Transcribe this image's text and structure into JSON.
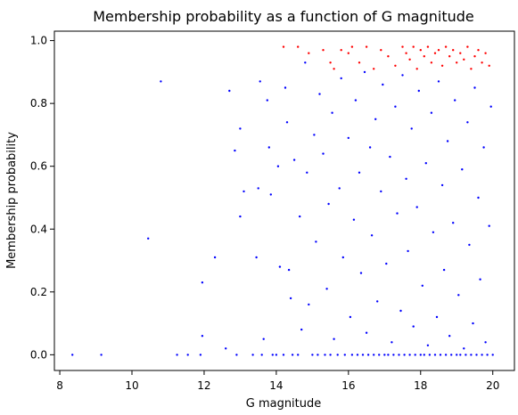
{
  "chart_data": {
    "type": "scatter",
    "title": "Membership probability as a function of G magnitude",
    "xlabel": "G magnitude",
    "ylabel": "Membership probability",
    "xlim": [
      7.85,
      20.6
    ],
    "ylim": [
      -0.05,
      1.03
    ],
    "xticks": [
      8,
      10,
      12,
      14,
      16,
      18,
      20
    ],
    "yticks": [
      0.0,
      0.2,
      0.4,
      0.6,
      0.8,
      1.0
    ],
    "grid": false,
    "legend": "none",
    "marker_size": 1.2,
    "series": [
      {
        "color": "#0000ff",
        "sampled": true,
        "points": [
          [
            8.35,
            0.0
          ],
          [
            9.15,
            0.0
          ],
          [
            10.45,
            0.37
          ],
          [
            10.8,
            0.87
          ],
          [
            11.25,
            0.0
          ],
          [
            11.55,
            0.0
          ],
          [
            11.9,
            0.0
          ],
          [
            11.95,
            0.06
          ],
          [
            11.95,
            0.23
          ],
          [
            12.3,
            0.31
          ],
          [
            12.6,
            0.02
          ],
          [
            12.7,
            0.84
          ],
          [
            12.85,
            0.65
          ],
          [
            12.9,
            0.0
          ],
          [
            13.0,
            0.72
          ],
          [
            13.0,
            0.44
          ],
          [
            13.1,
            0.52
          ],
          [
            13.35,
            0.0
          ],
          [
            13.45,
            0.31
          ],
          [
            13.5,
            0.53
          ],
          [
            13.55,
            0.87
          ],
          [
            13.6,
            0.0
          ],
          [
            13.65,
            0.05
          ],
          [
            13.75,
            0.81
          ],
          [
            13.8,
            0.66
          ],
          [
            13.85,
            0.51
          ],
          [
            13.9,
            0.0
          ],
          [
            14.0,
            0.0
          ],
          [
            14.05,
            0.6
          ],
          [
            14.1,
            0.28
          ],
          [
            14.2,
            0.0
          ],
          [
            14.25,
            0.85
          ],
          [
            14.3,
            0.74
          ],
          [
            14.35,
            0.27
          ],
          [
            14.4,
            0.18
          ],
          [
            14.45,
            0.0
          ],
          [
            14.5,
            0.62
          ],
          [
            14.6,
            0.0
          ],
          [
            14.65,
            0.44
          ],
          [
            14.7,
            0.08
          ],
          [
            14.8,
            0.93
          ],
          [
            14.85,
            0.58
          ],
          [
            14.9,
            0.16
          ],
          [
            15.0,
            0.0
          ],
          [
            15.05,
            0.7
          ],
          [
            15.1,
            0.36
          ],
          [
            15.15,
            0.0
          ],
          [
            15.2,
            0.83
          ],
          [
            15.3,
            0.64
          ],
          [
            15.35,
            0.0
          ],
          [
            15.4,
            0.21
          ],
          [
            15.45,
            0.48
          ],
          [
            15.5,
            0.0
          ],
          [
            15.55,
            0.77
          ],
          [
            15.6,
            0.05
          ],
          [
            15.7,
            0.0
          ],
          [
            15.75,
            0.53
          ],
          [
            15.8,
            0.88
          ],
          [
            15.85,
            0.31
          ],
          [
            15.9,
            0.0
          ],
          [
            16.0,
            0.69
          ],
          [
            16.05,
            0.12
          ],
          [
            16.1,
            0.0
          ],
          [
            16.15,
            0.43
          ],
          [
            16.2,
            0.81
          ],
          [
            16.25,
            0.0
          ],
          [
            16.3,
            0.58
          ],
          [
            16.35,
            0.26
          ],
          [
            16.4,
            0.0
          ],
          [
            16.45,
            0.9
          ],
          [
            16.5,
            0.07
          ],
          [
            16.55,
            0.0
          ],
          [
            16.6,
            0.66
          ],
          [
            16.65,
            0.38
          ],
          [
            16.7,
            0.0
          ],
          [
            16.75,
            0.75
          ],
          [
            16.8,
            0.17
          ],
          [
            16.85,
            0.0
          ],
          [
            16.9,
            0.52
          ],
          [
            16.95,
            0.86
          ],
          [
            17.0,
            0.0
          ],
          [
            17.05,
            0.29
          ],
          [
            17.1,
            0.0
          ],
          [
            17.15,
            0.63
          ],
          [
            17.2,
            0.04
          ],
          [
            17.25,
            0.0
          ],
          [
            17.3,
            0.79
          ],
          [
            17.35,
            0.45
          ],
          [
            17.4,
            0.0
          ],
          [
            17.45,
            0.14
          ],
          [
            17.5,
            0.89
          ],
          [
            17.55,
            0.0
          ],
          [
            17.6,
            0.56
          ],
          [
            17.65,
            0.33
          ],
          [
            17.7,
            0.0
          ],
          [
            17.75,
            0.72
          ],
          [
            17.8,
            0.09
          ],
          [
            17.85,
            0.0
          ],
          [
            17.9,
            0.47
          ],
          [
            17.95,
            0.84
          ],
          [
            18.0,
            0.0
          ],
          [
            18.05,
            0.22
          ],
          [
            18.1,
            0.0
          ],
          [
            18.15,
            0.61
          ],
          [
            18.2,
            0.03
          ],
          [
            18.25,
            0.0
          ],
          [
            18.3,
            0.77
          ],
          [
            18.35,
            0.39
          ],
          [
            18.4,
            0.0
          ],
          [
            18.45,
            0.12
          ],
          [
            18.5,
            0.87
          ],
          [
            18.55,
            0.0
          ],
          [
            18.6,
            0.54
          ],
          [
            18.65,
            0.27
          ],
          [
            18.7,
            0.0
          ],
          [
            18.75,
            0.68
          ],
          [
            18.8,
            0.06
          ],
          [
            18.85,
            0.0
          ],
          [
            18.9,
            0.42
          ],
          [
            18.95,
            0.81
          ],
          [
            19.0,
            0.0
          ],
          [
            19.05,
            0.19
          ],
          [
            19.1,
            0.0
          ],
          [
            19.15,
            0.59
          ],
          [
            19.2,
            0.02
          ],
          [
            19.25,
            0.0
          ],
          [
            19.3,
            0.74
          ],
          [
            19.35,
            0.35
          ],
          [
            19.4,
            0.0
          ],
          [
            19.45,
            0.1
          ],
          [
            19.5,
            0.85
          ],
          [
            19.55,
            0.0
          ],
          [
            19.6,
            0.5
          ],
          [
            19.65,
            0.24
          ],
          [
            19.7,
            0.0
          ],
          [
            19.75,
            0.66
          ],
          [
            19.8,
            0.04
          ],
          [
            19.85,
            0.0
          ],
          [
            19.9,
            0.41
          ],
          [
            19.95,
            0.79
          ],
          [
            20.0,
            0.0
          ]
        ]
      },
      {
        "color": "#ff0000",
        "sampled": true,
        "points": [
          [
            14.2,
            0.98
          ],
          [
            14.6,
            0.98
          ],
          [
            14.9,
            0.96
          ],
          [
            15.3,
            0.97
          ],
          [
            15.5,
            0.93
          ],
          [
            15.6,
            0.91
          ],
          [
            15.8,
            0.97
          ],
          [
            16.0,
            0.96
          ],
          [
            16.1,
            0.98
          ],
          [
            16.3,
            0.93
          ],
          [
            16.5,
            0.98
          ],
          [
            16.7,
            0.91
          ],
          [
            16.9,
            0.97
          ],
          [
            17.1,
            0.95
          ],
          [
            17.3,
            0.92
          ],
          [
            17.5,
            0.98
          ],
          [
            17.6,
            0.96
          ],
          [
            17.7,
            0.94
          ],
          [
            17.8,
            0.98
          ],
          [
            17.9,
            0.91
          ],
          [
            18.0,
            0.97
          ],
          [
            18.1,
            0.95
          ],
          [
            18.2,
            0.98
          ],
          [
            18.3,
            0.93
          ],
          [
            18.4,
            0.96
          ],
          [
            18.5,
            0.97
          ],
          [
            18.6,
            0.92
          ],
          [
            18.7,
            0.98
          ],
          [
            18.8,
            0.95
          ],
          [
            18.9,
            0.97
          ],
          [
            19.0,
            0.93
          ],
          [
            19.1,
            0.96
          ],
          [
            19.2,
            0.94
          ],
          [
            19.3,
            0.98
          ],
          [
            19.4,
            0.91
          ],
          [
            19.5,
            0.95
          ],
          [
            19.6,
            0.97
          ],
          [
            19.7,
            0.93
          ],
          [
            19.8,
            0.96
          ],
          [
            19.9,
            0.92
          ]
        ]
      }
    ]
  }
}
